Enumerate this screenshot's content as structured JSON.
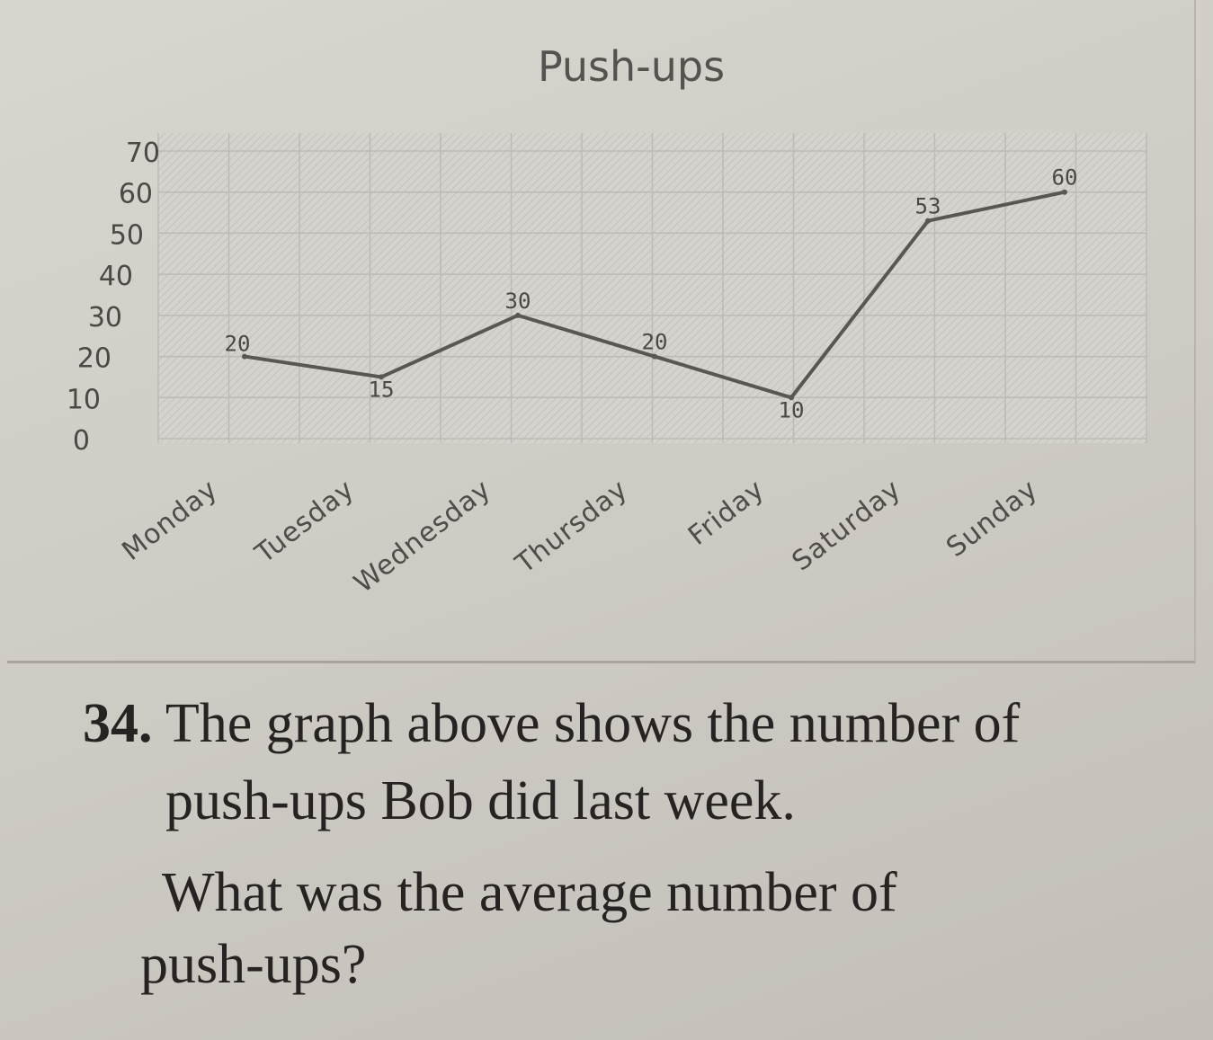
{
  "chart_data": {
    "type": "line",
    "title": "Push-ups",
    "categories": [
      "Monday",
      "Tuesday",
      "Wednesday",
      "Thursday",
      "Friday",
      "Saturday",
      "Sunday"
    ],
    "series": [
      {
        "values": [
          20,
          15,
          30,
          20,
          10,
          53,
          60
        ]
      }
    ],
    "data_labels": [
      "20",
      "15",
      "30",
      "20",
      "10",
      "53",
      "60"
    ],
    "y_ticks": [
      "70",
      "60",
      "50",
      "40",
      "30",
      "20",
      "10",
      "0"
    ],
    "ylim": [
      0,
      70
    ],
    "grid": true,
    "xlabel": "",
    "ylabel": "",
    "colors": {
      "line": "#5a5653",
      "plot_bg": "#d3d0cb",
      "grid": "#bdb9b4"
    }
  },
  "question": {
    "number": "34.",
    "line1": "The graph above shows the number of",
    "line2": "push-ups Bob did last week.",
    "line3": "What was the average number of",
    "line4": "push-ups?"
  }
}
